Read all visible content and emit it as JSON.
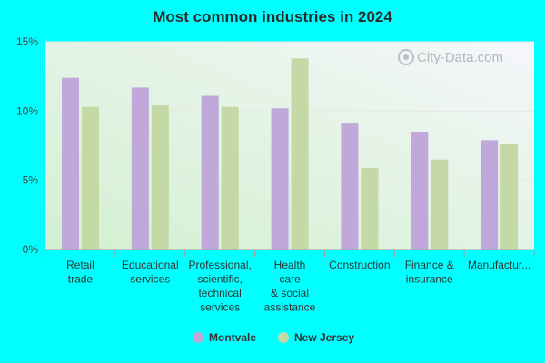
{
  "chart_data": {
    "type": "bar",
    "title": "Most common industries in 2024",
    "categories": [
      [
        "Retail",
        "trade"
      ],
      [
        "Educational",
        "services"
      ],
      [
        "Professional,",
        "scientific,",
        "technical",
        "services"
      ],
      [
        "Health",
        "care",
        "& social",
        "assistance"
      ],
      [
        "Construction"
      ],
      [
        "Finance &",
        "insurance"
      ],
      [
        "Manufactur..."
      ]
    ],
    "series": [
      {
        "name": "Montvale",
        "color": "#c0a8da",
        "values": [
          12.4,
          11.7,
          11.1,
          10.2,
          9.1,
          8.5,
          7.9
        ]
      },
      {
        "name": "New Jersey",
        "color": "#c4d9a5",
        "values": [
          10.3,
          10.4,
          10.3,
          13.8,
          5.9,
          6.5,
          7.6
        ]
      }
    ],
    "ylim": [
      0,
      15
    ],
    "yticks": [
      0,
      5,
      10,
      15
    ],
    "ytick_labels": [
      "0%",
      "5%",
      "10%",
      "15%"
    ],
    "grid": true,
    "legend_position": "bottom"
  },
  "watermark": "City-Data.com"
}
